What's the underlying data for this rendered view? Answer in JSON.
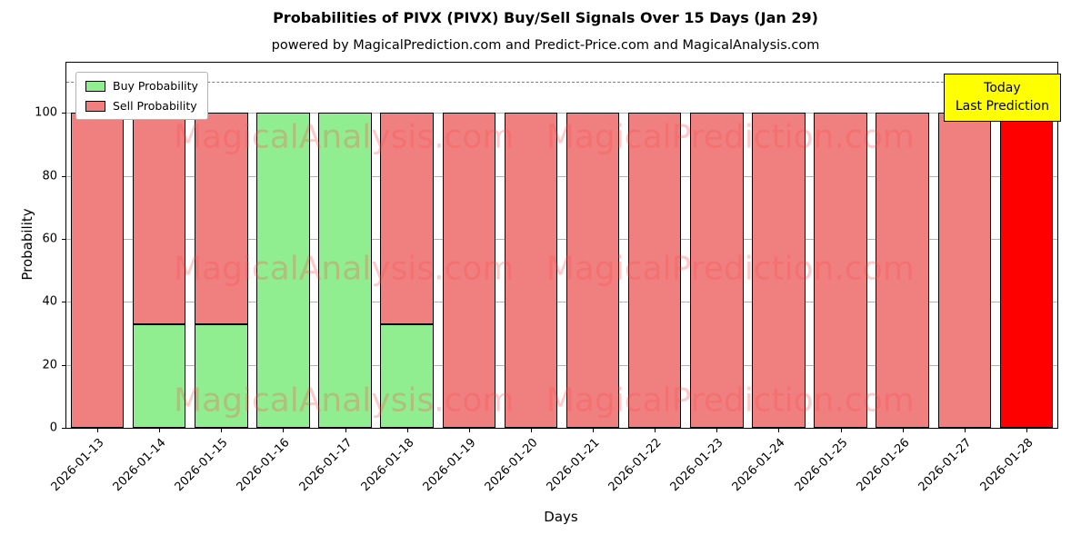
{
  "title": "Probabilities of PIVX (PIVX) Buy/Sell Signals Over 15 Days (Jan 29)",
  "subtitle": "powered by MagicalPrediction.com and Predict-Price.com and MagicalAnalysis.com",
  "legend": {
    "buy_label": "Buy Probability",
    "sell_label": "Sell Probability"
  },
  "annotation": {
    "line1": "Today",
    "line2": "Last Prediction"
  },
  "axes": {
    "ylabel": "Probability",
    "xlabel": "Days",
    "yticks": [
      0,
      20,
      40,
      60,
      80,
      100
    ]
  },
  "colors": {
    "buy": "#90ee90",
    "sell": "#f08080",
    "last_bar": "#ff0000",
    "annotation_bg": "#ffff00",
    "grid": "#b3b3b3"
  },
  "watermarks": [
    "MagicalAnalysis.com",
    "MagicalPrediction.com"
  ],
  "chart_data": {
    "type": "bar",
    "stacked": true,
    "title": "Probabilities of PIVX (PIVX) Buy/Sell Signals Over 15 Days (Jan 29)",
    "xlabel": "Days",
    "ylabel": "Probability",
    "categories": [
      "2026-01-13",
      "2026-01-14",
      "2026-01-15",
      "2026-01-16",
      "2026-01-17",
      "2026-01-18",
      "2026-01-19",
      "2026-01-20",
      "2026-01-21",
      "2026-01-22",
      "2026-01-23",
      "2026-01-24",
      "2026-01-25",
      "2026-01-26",
      "2026-01-27",
      "2026-01-28"
    ],
    "series": [
      {
        "name": "Buy Probability",
        "color": "#90ee90",
        "values": [
          0,
          33,
          33,
          100,
          100,
          33,
          0,
          0,
          0,
          0,
          0,
          0,
          0,
          0,
          0,
          0
        ]
      },
      {
        "name": "Sell Probability",
        "color": "#f08080",
        "values": [
          100,
          67,
          67,
          0,
          0,
          67,
          100,
          100,
          100,
          100,
          100,
          100,
          100,
          100,
          100,
          100
        ]
      }
    ],
    "last_bar_color": "#ff0000",
    "ylim": [
      0,
      116
    ],
    "dashed_line_y": 110,
    "grid": true,
    "legend_position": "upper left"
  }
}
